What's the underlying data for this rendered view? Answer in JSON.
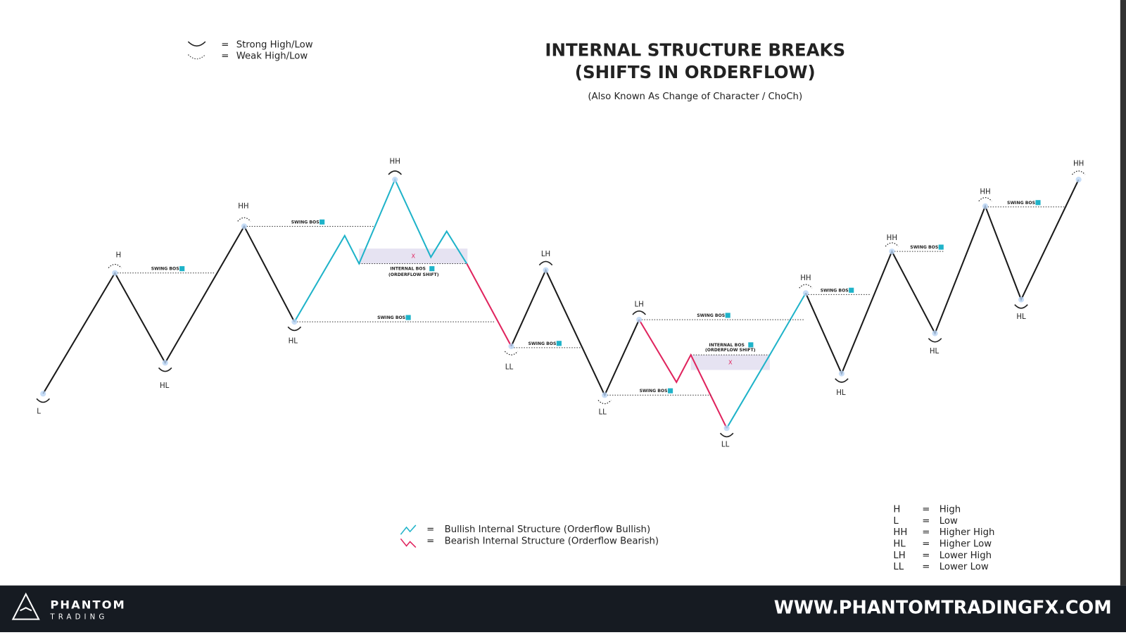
{
  "header": {
    "title_lines": [
      "INTERNAL STRUCTURE BREAKS",
      "(SHIFTS IN ORDERFLOW)"
    ],
    "subtitle": "(Also Known As Change of Character / ChoCh)"
  },
  "symbol_legend": [
    {
      "sign": "=",
      "label": "Strong High/Low"
    },
    {
      "sign": "=",
      "label": "Weak High/Low"
    }
  ],
  "swing_points": [
    "L",
    "H",
    "HL",
    "HH",
    "HL",
    "HH",
    "LL",
    "LH",
    "LL",
    "LH",
    "LL",
    "HH",
    "HL",
    "HH",
    "HL",
    "HH",
    "HL",
    "HH"
  ],
  "swing_bos": [
    "SWING BOS",
    "SWING BOS",
    "SWING BOS",
    "SWING BOS",
    "SWING BOS",
    "SWING BOS",
    "SWING BOS",
    "SWING BOS",
    "SWING BOS"
  ],
  "internal_bos": [
    {
      "label": "INTERNAL BOS",
      "sub": "(ORDERFLOW SHIFT)",
      "mark": "X"
    },
    {
      "label": "INTERNAL BOS",
      "sub": "(ORDERFLOW SHIFT)",
      "mark": "X"
    }
  ],
  "structure_legend": [
    {
      "sign": "=",
      "label": "Bullish Internal Structure (Orderflow Bullish)"
    },
    {
      "sign": "=",
      "label": "Bearish Internal Structure (Orderflow Bearish)"
    }
  ],
  "abbreviations": [
    [
      "H",
      "=",
      "High"
    ],
    [
      "L",
      "=",
      "Low"
    ],
    [
      "HH",
      "=",
      "Higher High"
    ],
    [
      "HL",
      "=",
      "Higher Low"
    ],
    [
      "LH",
      "=",
      "Lower High"
    ],
    [
      "LL",
      "=",
      "Lower Low"
    ]
  ],
  "footer": {
    "brand": "PHANTOM",
    "brand_sub": "TRADING",
    "website": "WWW.PHANTOMTRADINGFX.COM"
  }
}
